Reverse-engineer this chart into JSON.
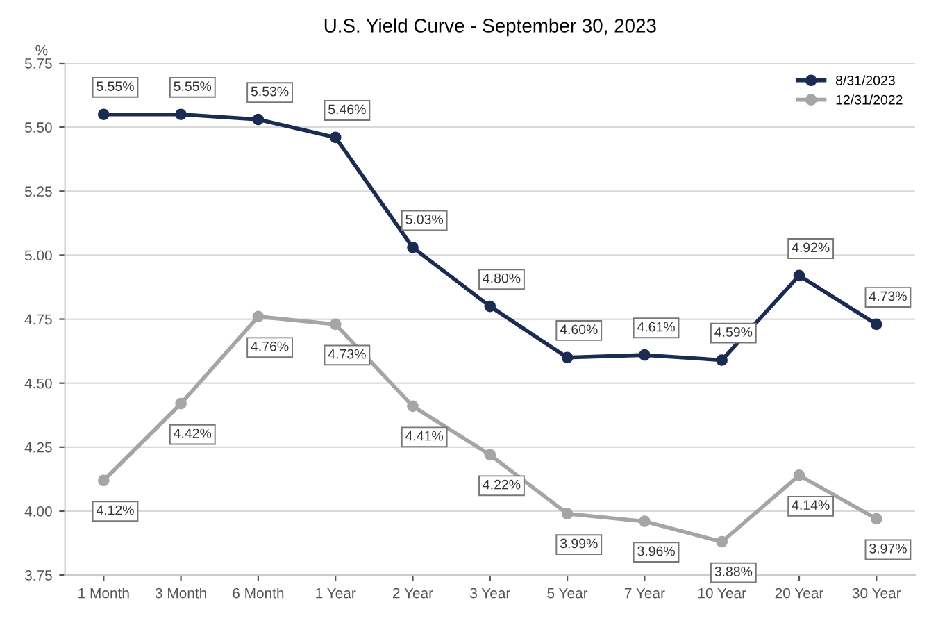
{
  "chart_data": {
    "type": "line",
    "title": "U.S. Yield Curve - September 30, 2023",
    "ylabel": "%",
    "categories": [
      "1 Month",
      "3 Month",
      "6 Month",
      "1 Year",
      "2 Year",
      "3 Year",
      "5 Year",
      "7 Year",
      "10 Year",
      "20 Year",
      "30 Year"
    ],
    "series": [
      {
        "name": "8/31/2023",
        "color": "#1c2b52",
        "values": [
          5.55,
          5.55,
          5.53,
          5.46,
          5.03,
          4.8,
          4.6,
          4.61,
          4.59,
          4.92,
          4.73
        ],
        "value_labels": [
          "5.55%",
          "5.55%",
          "5.53%",
          "5.46%",
          "5.03%",
          "4.80%",
          "4.60%",
          "4.61%",
          "4.59%",
          "4.92%",
          "4.73%"
        ]
      },
      {
        "name": "12/31/2022",
        "color": "#a5a5a5",
        "values": [
          4.12,
          4.42,
          4.76,
          4.73,
          4.41,
          4.22,
          3.99,
          3.96,
          3.88,
          4.14,
          3.97
        ],
        "value_labels": [
          "4.12%",
          "4.42%",
          "4.76%",
          "4.73%",
          "4.41%",
          "4.22%",
          "3.99%",
          "3.96%",
          "3.88%",
          "4.14%",
          "3.97%"
        ]
      }
    ],
    "ylim": [
      3.75,
      5.75
    ],
    "yticks": [
      "3.75",
      "4.00",
      "4.25",
      "4.50",
      "4.75",
      "5.00",
      "5.25",
      "5.50",
      "5.75"
    ],
    "grid": "y",
    "legend": "top right",
    "marker": "circle",
    "line_style": "solid"
  }
}
